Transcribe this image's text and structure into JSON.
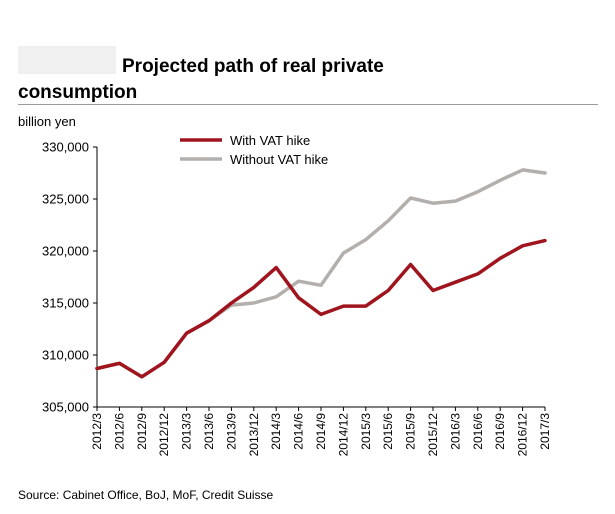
{
  "title_line1": "Projected path of real private",
  "title_line2": "consumption",
  "source": "Source: Cabinet Office, BoJ, MoF, Credit Suisse",
  "chart_data": {
    "type": "line",
    "ylabel": "billion yen",
    "ylim": [
      305000,
      330000
    ],
    "yticks": [
      305000,
      310000,
      315000,
      320000,
      325000,
      330000
    ],
    "ytick_labels": [
      "305,000",
      "310,000",
      "315,000",
      "320,000",
      "325,000",
      "330,000"
    ],
    "x": [
      "2012/3",
      "2012/6",
      "2012/9",
      "2012/12",
      "2013/3",
      "2013/6",
      "2013/9",
      "2013/12",
      "2014/3",
      "2014/6",
      "2014/9",
      "2014/12",
      "2015/3",
      "2015/6",
      "2015/9",
      "2015/12",
      "2016/3",
      "2016/6",
      "2016/9",
      "2016/12",
      "2017/3"
    ],
    "legend_position": "top",
    "series": [
      {
        "name": "With VAT hike",
        "color": "#a0141e",
        "values": [
          308700,
          309200,
          307900,
          309300,
          312100,
          313300,
          315000,
          316500,
          318400,
          315500,
          313900,
          314700,
          314700,
          316200,
          318700,
          316200,
          317000,
          317800,
          319300,
          320500,
          321000
        ]
      },
      {
        "name": "Without VAT hike",
        "color": "#b3afac",
        "values": [
          308700,
          309200,
          307900,
          309300,
          312100,
          313300,
          314800,
          315000,
          315600,
          317100,
          316700,
          319800,
          321100,
          322900,
          325100,
          324600,
          324800,
          325700,
          326800,
          327800,
          327500
        ]
      }
    ]
  }
}
